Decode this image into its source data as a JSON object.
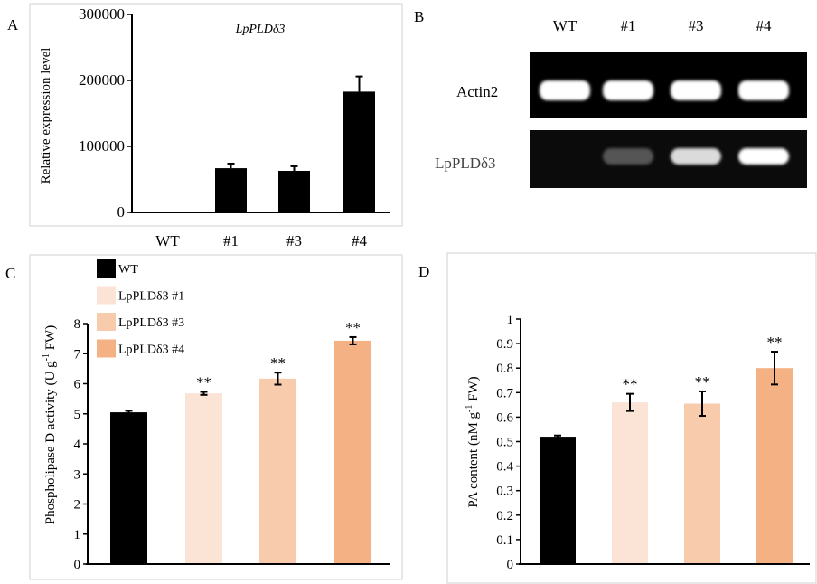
{
  "colors": {
    "wt": "#000000",
    "l1": "#fbe3d6",
    "l3": "#f8cbad",
    "l4": "#f4b183"
  },
  "chart_data": [
    {
      "panel": "A",
      "type": "bar",
      "title": "LpPLDδ3",
      "ylabel": "Relative expression level",
      "xlabel": "",
      "categories": [
        "WT",
        "#1",
        "#3",
        "#4"
      ],
      "values": [
        0,
        67000,
        63000,
        183000
      ],
      "errors": [
        0,
        7000,
        7000,
        23000
      ],
      "ylim": [
        0,
        300000
      ],
      "yticks": [
        "0",
        "100000",
        "200000",
        "300000"
      ],
      "significance": [
        "",
        "",
        "",
        ""
      ]
    },
    {
      "panel": "B",
      "type": "gel",
      "lanes": [
        "WT",
        "#1",
        "#3",
        "#4"
      ],
      "rows": [
        {
          "label": "Actin2",
          "band_intensity": [
            1,
            1,
            1,
            1
          ]
        },
        {
          "label": "LpPLDδ3",
          "band_intensity": [
            0,
            0.3,
            0.85,
            1
          ]
        }
      ]
    },
    {
      "panel": "C",
      "type": "bar",
      "ylabel": "Phospholipase D activity (U g-1 FW)",
      "ylabel_parts": [
        "Phospholipase D activity (U g",
        "-1",
        " FW)"
      ],
      "categories": [
        "WT",
        "LpPLDδ3 #1",
        "LpPLDδ3 #3",
        "LpPLDδ3 #4"
      ],
      "values": [
        5.05,
        5.68,
        6.17,
        7.43
      ],
      "errors": [
        0.05,
        0.05,
        0.2,
        0.12
      ],
      "ylim": [
        0,
        8
      ],
      "yticks": [
        "0",
        "1",
        "2",
        "3",
        "4",
        "5",
        "6",
        "7",
        "8"
      ],
      "significance": [
        "",
        "**",
        "**",
        "**"
      ],
      "legend": [
        "WT",
        "LpPLDδ3 #1",
        "LpPLDδ3 #3",
        "LpPLDδ3 #4"
      ],
      "legend_position": "top-left"
    },
    {
      "panel": "D",
      "type": "bar",
      "ylabel": "PA content (nM g-1 FW)",
      "ylabel_parts": [
        "PA content (nM g",
        "-1",
        " FW)"
      ],
      "categories": [
        "WT",
        "LpPLDδ3 #1",
        "LpPLDδ3 #3",
        "LpPLDδ3 #4"
      ],
      "values": [
        0.52,
        0.66,
        0.655,
        0.8
      ],
      "errors": [
        0.005,
        0.035,
        0.05,
        0.067
      ],
      "ylim": [
        0,
        1
      ],
      "yticks": [
        "0",
        "0.1",
        "0.2",
        "0.3",
        "0.4",
        "0.5",
        "0.6",
        "0.7",
        "0.8",
        "0.9",
        "1"
      ],
      "significance": [
        "",
        "**",
        "**",
        "**"
      ]
    }
  ]
}
